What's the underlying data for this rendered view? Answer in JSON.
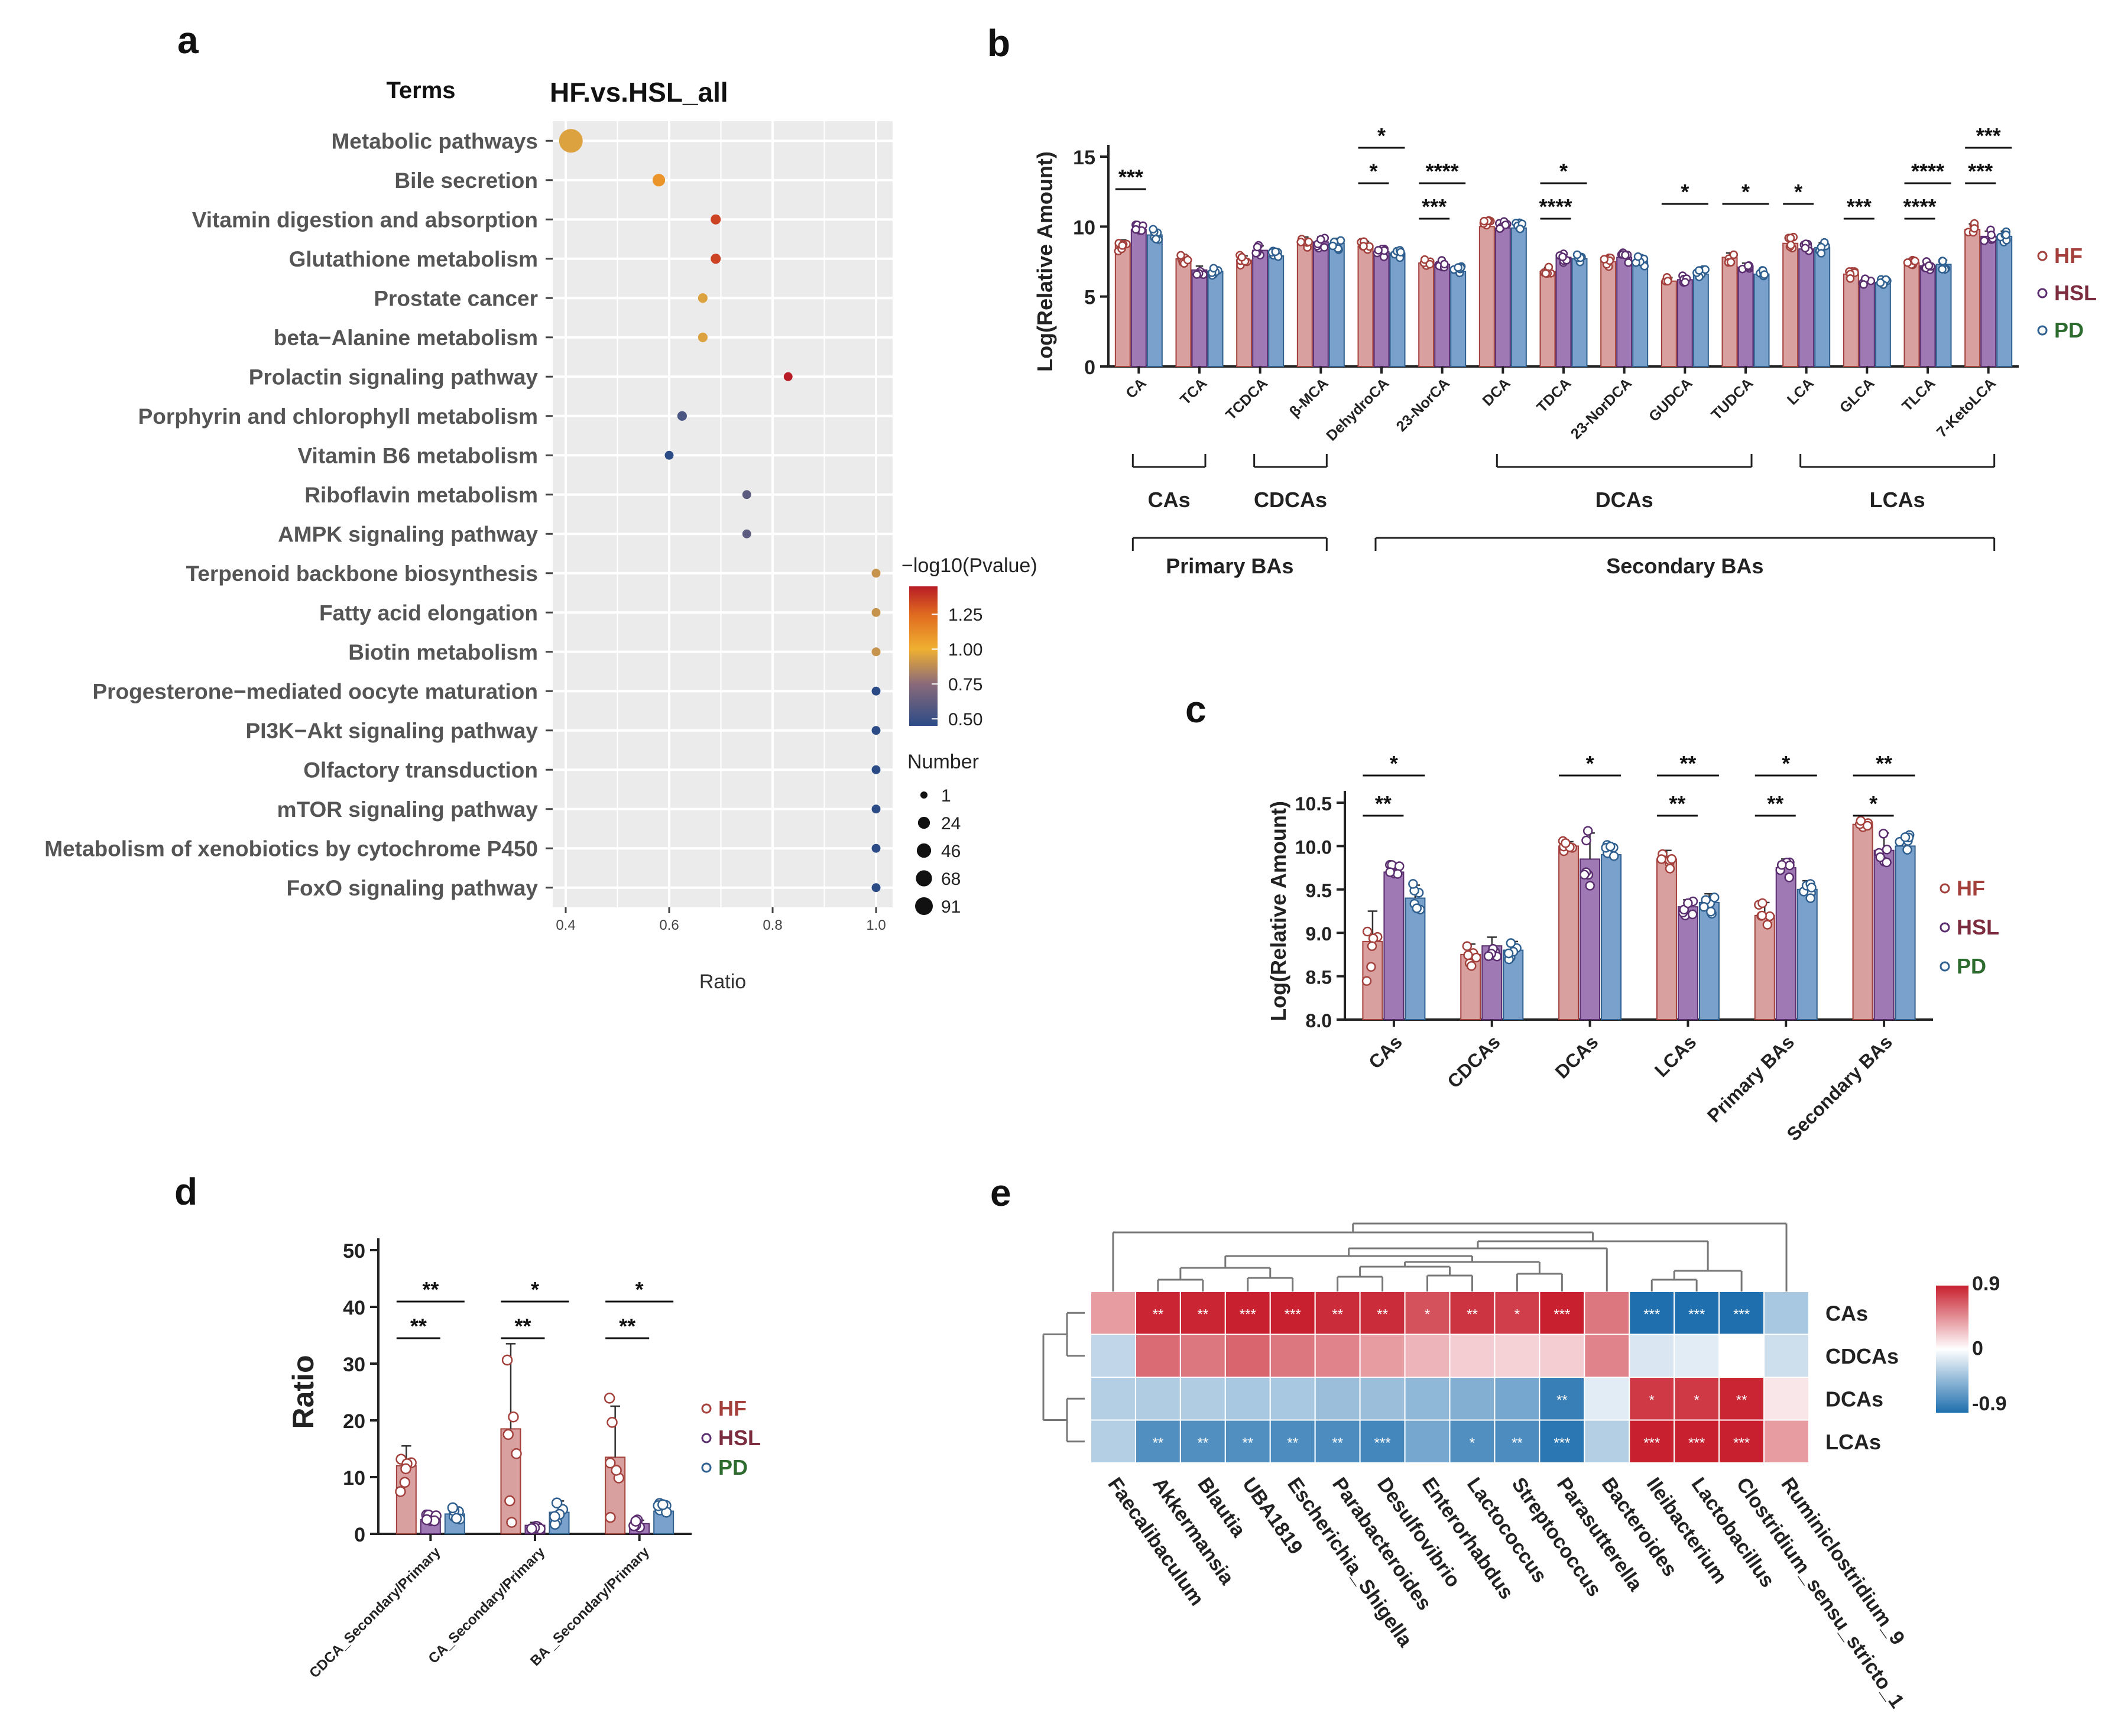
{
  "colors": {
    "HF": "#d8a09f",
    "HF_edge": "#a3403c",
    "HSL": "#9e79b4",
    "HSL_edge": "#5a2d6f",
    "PD": "#7aa1cc",
    "PD_edge": "#2f5f8f",
    "legend_HF": "#a3403c",
    "legend_HSL": "#7b2d3f",
    "legend_PD": "#2e6b2e",
    "panel_bg": "#ebebeb",
    "heat_pos": "#c8202e",
    "heat_neg": "#1f6fae"
  },
  "chart_data": [
    {
      "id": "a",
      "type": "scatter",
      "panel_label": "a",
      "title": "HF.vs.HSL_all",
      "terms_label": "Terms",
      "xlabel": "Ratio",
      "xlim": [
        0.4,
        1.0
      ],
      "xticks": [
        "0.4",
        "0.6",
        "0.8",
        "1.0"
      ],
      "terms": [
        "Metabolic pathways",
        "Bile secretion",
        "Vitamin digestion and absorption",
        "Glutathione metabolism",
        "Prostate cancer",
        "beta−Alanine metabolism",
        "Prolactin signaling pathway",
        "Porphyrin and chlorophyll metabolism",
        "Vitamin B6 metabolism",
        "Riboflavin metabolism",
        "AMPK signaling pathway",
        "Terpenoid backbone biosynthesis",
        "Fatty acid elongation",
        "Biotin metabolism",
        "Progesterone−mediated oocyte maturation",
        "PI3K−Akt signaling pathway",
        "Olfactory transduction",
        "mTOR signaling pathway",
        "Metabolism of xenobiotics by cytochrome P450",
        "FoxO signaling pathway"
      ],
      "ratio": [
        0.41,
        0.58,
        0.69,
        0.69,
        0.665,
        0.665,
        0.83,
        0.625,
        0.6,
        0.75,
        0.75,
        1.0,
        1.0,
        1.0,
        1.0,
        1.0,
        1.0,
        1.0,
        1.0,
        1.0
      ],
      "neglog10p": [
        0.95,
        1.1,
        1.35,
        1.35,
        0.95,
        0.95,
        1.45,
        0.55,
        0.45,
        0.6,
        0.6,
        0.9,
        0.9,
        0.9,
        0.45,
        0.45,
        0.45,
        0.45,
        0.45,
        0.45
      ],
      "number": [
        91,
        10,
        3,
        3,
        2,
        2,
        1,
        2,
        1,
        1,
        1,
        1,
        1,
        1,
        1,
        1,
        1,
        1,
        1,
        1
      ],
      "colorbar_title": "−log10(Pvalue)",
      "colorbar_ticks": [
        "1.25",
        "1.00",
        "0.75",
        "0.50"
      ],
      "colorbar_range": [
        0.45,
        1.45
      ],
      "size_title": "Number",
      "size_ticks": [
        "1",
        "24",
        "46",
        "68",
        "91"
      ]
    },
    {
      "id": "b",
      "type": "bar",
      "panel_label": "b",
      "ylabel": "Log(Relative Amount)",
      "ylim": [
        0,
        15
      ],
      "yticks": [
        "0",
        "5",
        "10",
        "15"
      ],
      "categories": [
        "CA",
        "TCA",
        "TCDCA",
        "β-MCA",
        "DehydroCA",
        "23-NorCA",
        "DCA",
        "TDCA",
        "23-NorDCA",
        "GUDCA",
        "TUDCA",
        "LCA",
        "GLCA",
        "TLCA",
        "7-KetoLCA"
      ],
      "series": [
        {
          "name": "HF",
          "values": [
            8.7,
            7.7,
            7.6,
            8.9,
            8.6,
            7.4,
            10.0,
            6.8,
            7.5,
            6.1,
            7.8,
            8.8,
            6.6,
            7.4,
            9.8
          ]
        },
        {
          "name": "HSL",
          "values": [
            9.8,
            6.9,
            8.3,
            8.9,
            8.2,
            7.3,
            9.9,
            7.8,
            7.8,
            6.2,
            7.1,
            8.4,
            6.0,
            7.2,
            9.3
          ]
        },
        {
          "name": "PD",
          "values": [
            9.4,
            6.8,
            7.9,
            8.8,
            8.1,
            6.8,
            9.9,
            7.7,
            7.5,
            6.6,
            6.6,
            8.5,
            6.0,
            7.3,
            9.3
          ]
        }
      ],
      "significance": [
        {
          "cat": 0,
          "from": "HF",
          "to": "HSL",
          "level": 1,
          "label": "***"
        },
        {
          "cat": 4,
          "from": "HF",
          "to": "HSL",
          "level": 1,
          "label": "*"
        },
        {
          "cat": 4,
          "from": "HF",
          "to": "PD",
          "level": 2,
          "label": "*"
        },
        {
          "cat": 5,
          "from": "HF",
          "to": "HSL",
          "level": 1,
          "label": "***"
        },
        {
          "cat": 5,
          "from": "HF",
          "to": "PD",
          "level": 2,
          "label": "****"
        },
        {
          "cat": 7,
          "from": "HF",
          "to": "HSL",
          "level": 1,
          "label": "****"
        },
        {
          "cat": 7,
          "from": "HF",
          "to": "PD",
          "level": 2,
          "label": "*"
        },
        {
          "cat": 9,
          "from": "HF",
          "to": "PD",
          "level": 1,
          "label": "*"
        },
        {
          "cat": 10,
          "from": "HF",
          "to": "PD",
          "level": 1,
          "label": "*"
        },
        {
          "cat": 11,
          "from": "HF",
          "to": "HSL",
          "level": 1,
          "label": "*"
        },
        {
          "cat": 12,
          "from": "HF",
          "to": "HSL",
          "level": 1,
          "label": "***"
        },
        {
          "cat": 13,
          "from": "HF",
          "to": "HSL",
          "level": 1,
          "label": "****"
        },
        {
          "cat": 13,
          "from": "HF",
          "to": "PD",
          "level": 2,
          "label": "****"
        },
        {
          "cat": 14,
          "from": "HF",
          "to": "HSL",
          "level": 1,
          "label": "***"
        },
        {
          "cat": 14,
          "from": "HF",
          "to": "PD",
          "level": 2,
          "label": "***"
        }
      ],
      "groups": [
        {
          "label": "CAs",
          "from": 0,
          "to": 1,
          "row": 1
        },
        {
          "label": "CDCAs",
          "from": 2,
          "to": 3,
          "row": 1
        },
        {
          "label": "DCAs",
          "from": 6,
          "to": 10,
          "row": 1
        },
        {
          "label": "LCAs",
          "from": 11,
          "to": 14,
          "row": 1
        },
        {
          "label": "Primary BAs",
          "from": 0,
          "to": 3,
          "row": 2
        },
        {
          "label": "Secondary BAs",
          "from": 4,
          "to": 14,
          "row": 2
        }
      ],
      "legend": [
        "HF",
        "HSL",
        "PD"
      ]
    },
    {
      "id": "c",
      "type": "bar",
      "panel_label": "c",
      "ylabel": "Log(Relative Amount)",
      "ylim": [
        8.0,
        10.5
      ],
      "yticks": [
        "8.0",
        "8.5",
        "9.0",
        "9.5",
        "10.0",
        "10.5"
      ],
      "categories": [
        "CAs",
        "CDCAs",
        "DCAs",
        "LCAs",
        "Primary BAs",
        "Secondary BAs"
      ],
      "series": [
        {
          "name": "HF",
          "values": [
            8.9,
            8.75,
            10.0,
            9.85,
            9.2,
            10.25
          ]
        },
        {
          "name": "HSL",
          "values": [
            9.7,
            8.85,
            9.85,
            9.3,
            9.75,
            9.95
          ]
        },
        {
          "name": "PD",
          "values": [
            9.4,
            8.8,
            9.9,
            9.35,
            9.5,
            10.0
          ]
        }
      ],
      "errors": [
        [
          0.35,
          0.12,
          0.05,
          0.1,
          0.15,
          0.05
        ],
        [
          0.1,
          0.1,
          0.3,
          0.08,
          0.1,
          0.2
        ],
        [
          0.15,
          0.1,
          0.1,
          0.1,
          0.1,
          0.1
        ]
      ],
      "significance": [
        {
          "cat": 0,
          "from": "HF",
          "to": "HSL",
          "level": 1,
          "label": "**"
        },
        {
          "cat": 0,
          "from": "HF",
          "to": "PD",
          "level": 2,
          "label": "*"
        },
        {
          "cat": 2,
          "from": "HF",
          "to": "PD",
          "level": 2,
          "label": "*"
        },
        {
          "cat": 3,
          "from": "HF",
          "to": "HSL",
          "level": 1,
          "label": "**"
        },
        {
          "cat": 3,
          "from": "HF",
          "to": "PD",
          "level": 2,
          "label": "**"
        },
        {
          "cat": 4,
          "from": "HF",
          "to": "HSL",
          "level": 1,
          "label": "**"
        },
        {
          "cat": 4,
          "from": "HF",
          "to": "PD",
          "level": 2,
          "label": "*"
        },
        {
          "cat": 5,
          "from": "HF",
          "to": "HSL",
          "level": 1,
          "label": "*"
        },
        {
          "cat": 5,
          "from": "HF",
          "to": "PD",
          "level": 2,
          "label": "**"
        }
      ],
      "legend": [
        "HF",
        "HSL",
        "PD"
      ]
    },
    {
      "id": "d",
      "type": "bar",
      "panel_label": "d",
      "ylabel": "Ratio",
      "ylim": [
        0,
        50
      ],
      "yticks": [
        "0",
        "10",
        "20",
        "30",
        "40",
        "50"
      ],
      "categories": [
        "CDCA_Secondary/Primary",
        "CA_Secondary/Primary",
        "BA _Secondary/Primary"
      ],
      "series": [
        {
          "name": "HF",
          "values": [
            12,
            18.5,
            13.5
          ]
        },
        {
          "name": "HSL",
          "values": [
            2.5,
            1.5,
            1.8
          ]
        },
        {
          "name": "PD",
          "values": [
            3.5,
            3.8,
            4.0
          ]
        }
      ],
      "errors": [
        [
          3.5,
          15,
          9
        ],
        [
          1,
          0.5,
          0.6
        ],
        [
          1,
          2,
          1.2
        ]
      ],
      "significance": [
        {
          "cat": 0,
          "from": "HF",
          "to": "HSL",
          "level": 1,
          "label": "**"
        },
        {
          "cat": 0,
          "from": "HF",
          "to": "PD",
          "level": 2,
          "label": "**"
        },
        {
          "cat": 1,
          "from": "HF",
          "to": "HSL",
          "level": 1,
          "label": "**"
        },
        {
          "cat": 1,
          "from": "HF",
          "to": "PD",
          "level": 2,
          "label": "*"
        },
        {
          "cat": 2,
          "from": "HF",
          "to": "HSL",
          "level": 1,
          "label": "**"
        },
        {
          "cat": 2,
          "from": "HF",
          "to": "PD",
          "level": 2,
          "label": "*"
        }
      ],
      "legend": [
        "HF",
        "HSL",
        "PD"
      ]
    },
    {
      "id": "e",
      "type": "heatmap",
      "panel_label": "e",
      "rows": [
        "CAs",
        "CDCAs",
        "DCAs",
        "LCAs"
      ],
      "columns": [
        "Faecalibaculum",
        "Akkermansia",
        "Blautia",
        "UBA1819",
        "Escherichia_Shigella",
        "Parabacteroides",
        "Desulfovibrio",
        "Enterorhabdus",
        "Lactococcus",
        "Streptococcus",
        "Parasutterella",
        "Bacteroides",
        "Ileibacterium",
        "Lactobacillus",
        "Clostridium_sensu_stricto_1",
        "Ruminiclostridium_9"
      ],
      "values": [
        [
          0.4,
          0.88,
          0.88,
          0.9,
          0.9,
          0.85,
          0.85,
          0.7,
          0.82,
          0.78,
          0.9,
          0.55,
          -0.9,
          -0.9,
          -0.9,
          -0.35
        ],
        [
          -0.25,
          0.6,
          0.55,
          0.62,
          0.55,
          0.5,
          0.4,
          0.3,
          0.2,
          0.18,
          0.2,
          0.5,
          -0.15,
          -0.12,
          0.0,
          -0.2
        ],
        [
          -0.3,
          -0.32,
          -0.32,
          -0.35,
          -0.35,
          -0.4,
          -0.4,
          -0.45,
          -0.5,
          -0.55,
          -0.8,
          -0.12,
          0.8,
          0.8,
          0.88,
          0.1
        ],
        [
          -0.3,
          -0.7,
          -0.7,
          -0.7,
          -0.72,
          -0.72,
          -0.75,
          -0.55,
          -0.7,
          -0.72,
          -0.85,
          -0.3,
          0.9,
          0.9,
          0.9,
          0.4
        ]
      ],
      "stars": [
        [
          "",
          "**",
          "**",
          "***",
          "***",
          "**",
          "**",
          "*",
          "**",
          "*",
          "***",
          "",
          "***",
          "***",
          "***",
          ""
        ],
        [
          "",
          "",
          "",
          "",
          "",
          "",
          "",
          "",
          "",
          "",
          "",
          "",
          "",
          "",
          "",
          ""
        ],
        [
          "",
          "",
          "",
          "",
          "",
          "",
          "",
          "",
          "",
          "",
          "**",
          "",
          "*",
          "*",
          "**",
          ""
        ],
        [
          "",
          "**",
          "**",
          "**",
          "**",
          "**",
          "***",
          "",
          "*",
          "**",
          "***",
          "",
          "***",
          "***",
          "***",
          ""
        ]
      ],
      "colorbar_ticks": [
        "0.9",
        "0",
        "-0.9"
      ]
    }
  ]
}
